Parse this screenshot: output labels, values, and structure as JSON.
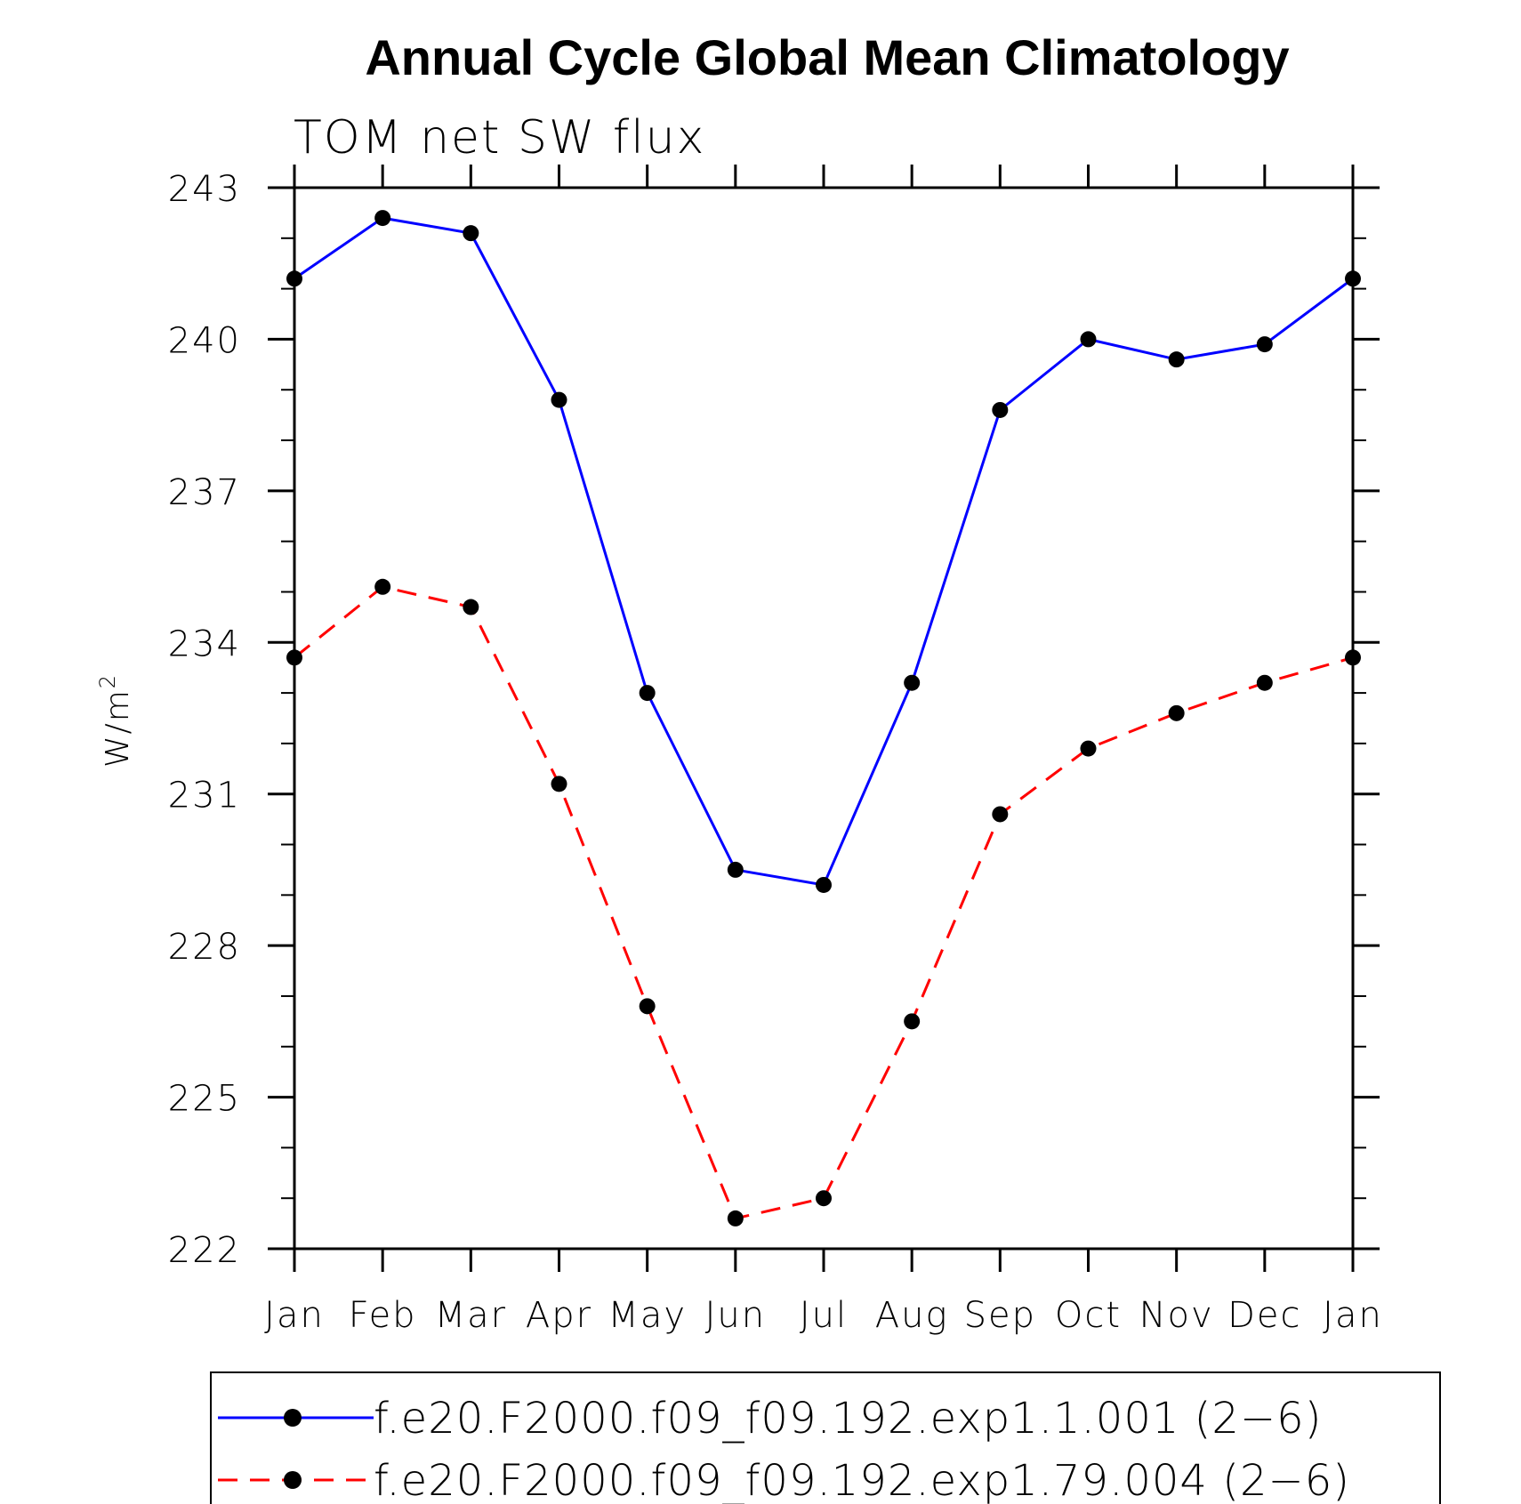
{
  "chart_data": {
    "type": "line",
    "title": "Annual Cycle Global Mean Climatology",
    "subtitle": "TOM net SW flux",
    "ylabel": "W/m",
    "ylabel_superscript": "2",
    "xlabel": "",
    "categories": [
      "Jan",
      "Feb",
      "Mar",
      "Apr",
      "May",
      "Jun",
      "Jul",
      "Aug",
      "Sep",
      "Oct",
      "Nov",
      "Dec",
      "Jan"
    ],
    "ylim": [
      222,
      243
    ],
    "yticks": [
      "243",
      "240",
      "237",
      "234",
      "231",
      "228",
      "225",
      "222"
    ],
    "grid": false,
    "legend_position": "bottom",
    "series": [
      {
        "name": "f.e20.F2000.f09_f09.192.exp1.1.001 (2−6)",
        "color": "#0000ff",
        "dash": "solid",
        "marker": "filled-circle",
        "values": [
          241.2,
          242.4,
          242.1,
          238.8,
          233.0,
          229.5,
          229.2,
          233.2,
          238.6,
          240.0,
          239.6,
          239.9,
          241.2
        ]
      },
      {
        "name": "f.e20.F2000.f09_f09.192.exp1.79.004 (2−6)",
        "color": "#ff0000",
        "dash": "dashed",
        "marker": "filled-circle",
        "values": [
          233.7,
          235.1,
          234.7,
          231.2,
          226.8,
          222.6,
          223.0,
          226.5,
          230.6,
          231.9,
          232.6,
          233.2,
          233.7
        ]
      }
    ]
  }
}
